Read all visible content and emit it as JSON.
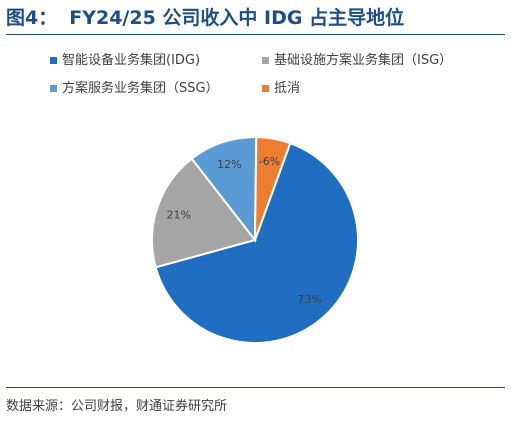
{
  "title": {
    "label": "图4：",
    "text": "FY24/25 公司收入中 IDG 占主导地位"
  },
  "source": "数据来源：公司财报，财通证券研究所",
  "colors": {
    "title": "#1d4f86",
    "IDG": "#1f6ec1",
    "ISG": "#a5a5a5",
    "SSG": "#5b9bd5",
    "offset": "#ed7d31"
  },
  "chart_data": {
    "type": "pie",
    "title": "FY24/25 公司收入中 IDG 占主导地位",
    "legend_position": "top",
    "slices": [
      {
        "name": "智能设备业务集团(IDG)",
        "value": 73,
        "label": "73%",
        "color": "#1f6ec1"
      },
      {
        "name": "基础设施方案业务集团（ISG）",
        "value": 21,
        "label": "21%",
        "color": "#a5a5a5"
      },
      {
        "name": "方案服务业务集团（SSG）",
        "value": 12,
        "label": "12%",
        "color": "#5b9bd5"
      },
      {
        "name": "抵消",
        "value": -6,
        "label": "-6%",
        "color": "#ed7d31"
      }
    ]
  }
}
